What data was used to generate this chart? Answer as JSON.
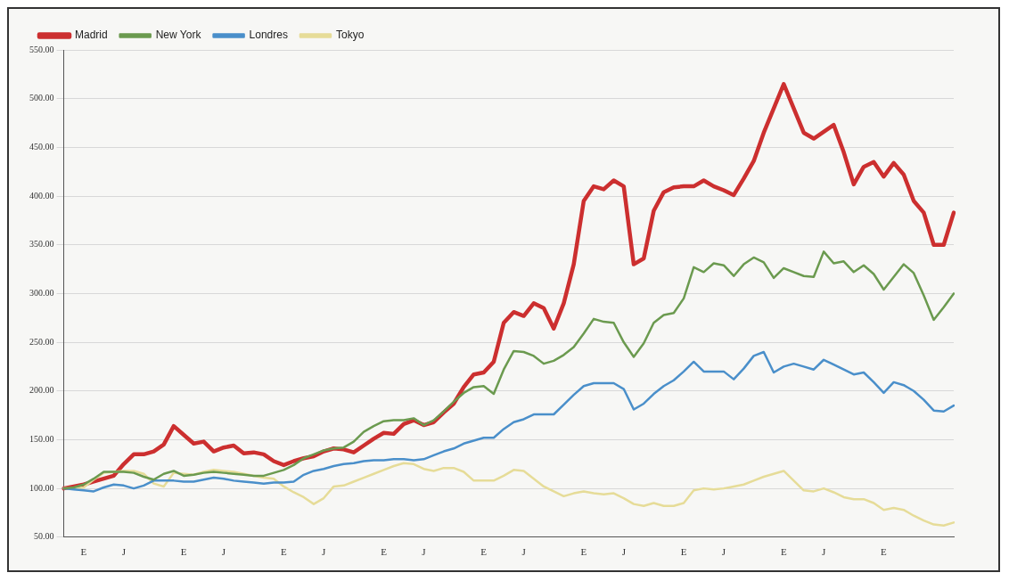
{
  "chart_data": {
    "type": "line",
    "legend": "top left",
    "grid": "y",
    "marker": "none",
    "line_style": "solid",
    "categories": [
      null,
      null,
      "E",
      null,
      null,
      null,
      "J",
      null,
      null,
      null,
      null,
      null,
      "E",
      null,
      null,
      null,
      "J",
      null,
      null,
      null,
      null,
      null,
      "E",
      null,
      null,
      null,
      "J",
      null,
      null,
      null,
      null,
      null,
      "E",
      null,
      null,
      null,
      "J",
      null,
      null,
      null,
      null,
      null,
      "E",
      null,
      null,
      null,
      "J",
      null,
      null,
      null,
      null,
      null,
      "E",
      null,
      null,
      null,
      "J",
      null,
      null,
      null,
      null,
      null,
      "E",
      null,
      null,
      null,
      "J",
      null,
      null,
      null,
      null,
      null,
      "E",
      null,
      null,
      null,
      "J",
      null,
      null,
      null,
      null,
      null,
      "E",
      null,
      null,
      null,
      null,
      null,
      null,
      null
    ],
    "ylim": [
      50,
      550
    ],
    "yticks": [
      {
        "value": 50,
        "label": "50.00"
      },
      {
        "value": 100,
        "label": "100.00"
      },
      {
        "value": 150,
        "label": "150.00"
      },
      {
        "value": 200,
        "label": "200.00"
      },
      {
        "value": 250,
        "label": "250.00"
      },
      {
        "value": 300,
        "label": "300.00"
      },
      {
        "value": 350,
        "label": "350.00"
      },
      {
        "value": 400,
        "label": "400.00"
      },
      {
        "value": 450,
        "label": "450.00"
      },
      {
        "value": 500,
        "label": "500.00"
      },
      {
        "value": 550,
        "label": "550.00"
      }
    ],
    "series": [
      {
        "name": "Madrid",
        "color": "#cc2f2f",
        "values": [
          100,
          102,
          104,
          107,
          110,
          113,
          125,
          135,
          135,
          138,
          145,
          164,
          155,
          146,
          148,
          138,
          142,
          144,
          136,
          137,
          135,
          128,
          124,
          128,
          131,
          133,
          138,
          141,
          140,
          137,
          144,
          151,
          157,
          156,
          166,
          170,
          165,
          168,
          178,
          187,
          204,
          217,
          219,
          230,
          270,
          281,
          277,
          290,
          285,
          264,
          290,
          330,
          395,
          410,
          407,
          416,
          410,
          330,
          336,
          385,
          404,
          409,
          410,
          410,
          416,
          410,
          406,
          401,
          418,
          436,
          465,
          490,
          515,
          490,
          465,
          459,
          466,
          473,
          445,
          412,
          430,
          435,
          420,
          434,
          422,
          395,
          383,
          350,
          350,
          383
        ]
      },
      {
        "name": "New York",
        "color": "#6b9a4f",
        "values": [
          100,
          101,
          104,
          110,
          117,
          117,
          117,
          116,
          112,
          109,
          115,
          118,
          113,
          114,
          116,
          117,
          116,
          115,
          114,
          113,
          113,
          116,
          119,
          124,
          131,
          135,
          139,
          141,
          142,
          148,
          158,
          164,
          169,
          170,
          170,
          172,
          165,
          170,
          179,
          189,
          198,
          204,
          205,
          197,
          222,
          241,
          240,
          236,
          228,
          231,
          237,
          245,
          259,
          274,
          271,
          270,
          250,
          235,
          249,
          270,
          278,
          280,
          295,
          327,
          322,
          331,
          329,
          318,
          330,
          337,
          332,
          316,
          326,
          322,
          318,
          317,
          343,
          331,
          333,
          322,
          329,
          320,
          304,
          317,
          330,
          321,
          298,
          273,
          286,
          300
        ]
      },
      {
        "name": "Londres",
        "color": "#4a8fca",
        "values": [
          100,
          99,
          98,
          97,
          101,
          104,
          103,
          100,
          103,
          108,
          108,
          108,
          107,
          107,
          109,
          111,
          110,
          108,
          107,
          106,
          105,
          106,
          106,
          107,
          114,
          118,
          120,
          123,
          125,
          126,
          128,
          129,
          129,
          130,
          130,
          129,
          130,
          134,
          138,
          141,
          146,
          149,
          152,
          152,
          161,
          168,
          171,
          176,
          176,
          176,
          186,
          196,
          205,
          208,
          208,
          208,
          202,
          181,
          187,
          197,
          205,
          211,
          220,
          230,
          220,
          220,
          220,
          212,
          223,
          236,
          240,
          219,
          225,
          228,
          225,
          222,
          232,
          227,
          222,
          217,
          219,
          209,
          198,
          209,
          206,
          200,
          191,
          180,
          179,
          185
        ]
      },
      {
        "name": "Tokyo",
        "color": "#e6dc98",
        "values": [
          100,
          100,
          101,
          109,
          116,
          117,
          118,
          118,
          115,
          105,
          102,
          116,
          115,
          114,
          117,
          119,
          118,
          117,
          115,
          113,
          111,
          110,
          102,
          96,
          91,
          84,
          90,
          102,
          103,
          107,
          111,
          115,
          119,
          123,
          126,
          125,
          120,
          118,
          121,
          121,
          117,
          108,
          108,
          108,
          113,
          119,
          118,
          110,
          102,
          97,
          92,
          95,
          97,
          95,
          94,
          95,
          90,
          84,
          82,
          85,
          82,
          82,
          85,
          98,
          100,
          99,
          100,
          102,
          104,
          108,
          112,
          115,
          118,
          108,
          98,
          97,
          100,
          96,
          91,
          89,
          89,
          85,
          78,
          80,
          78,
          72,
          67,
          63,
          62,
          65
        ]
      }
    ]
  }
}
